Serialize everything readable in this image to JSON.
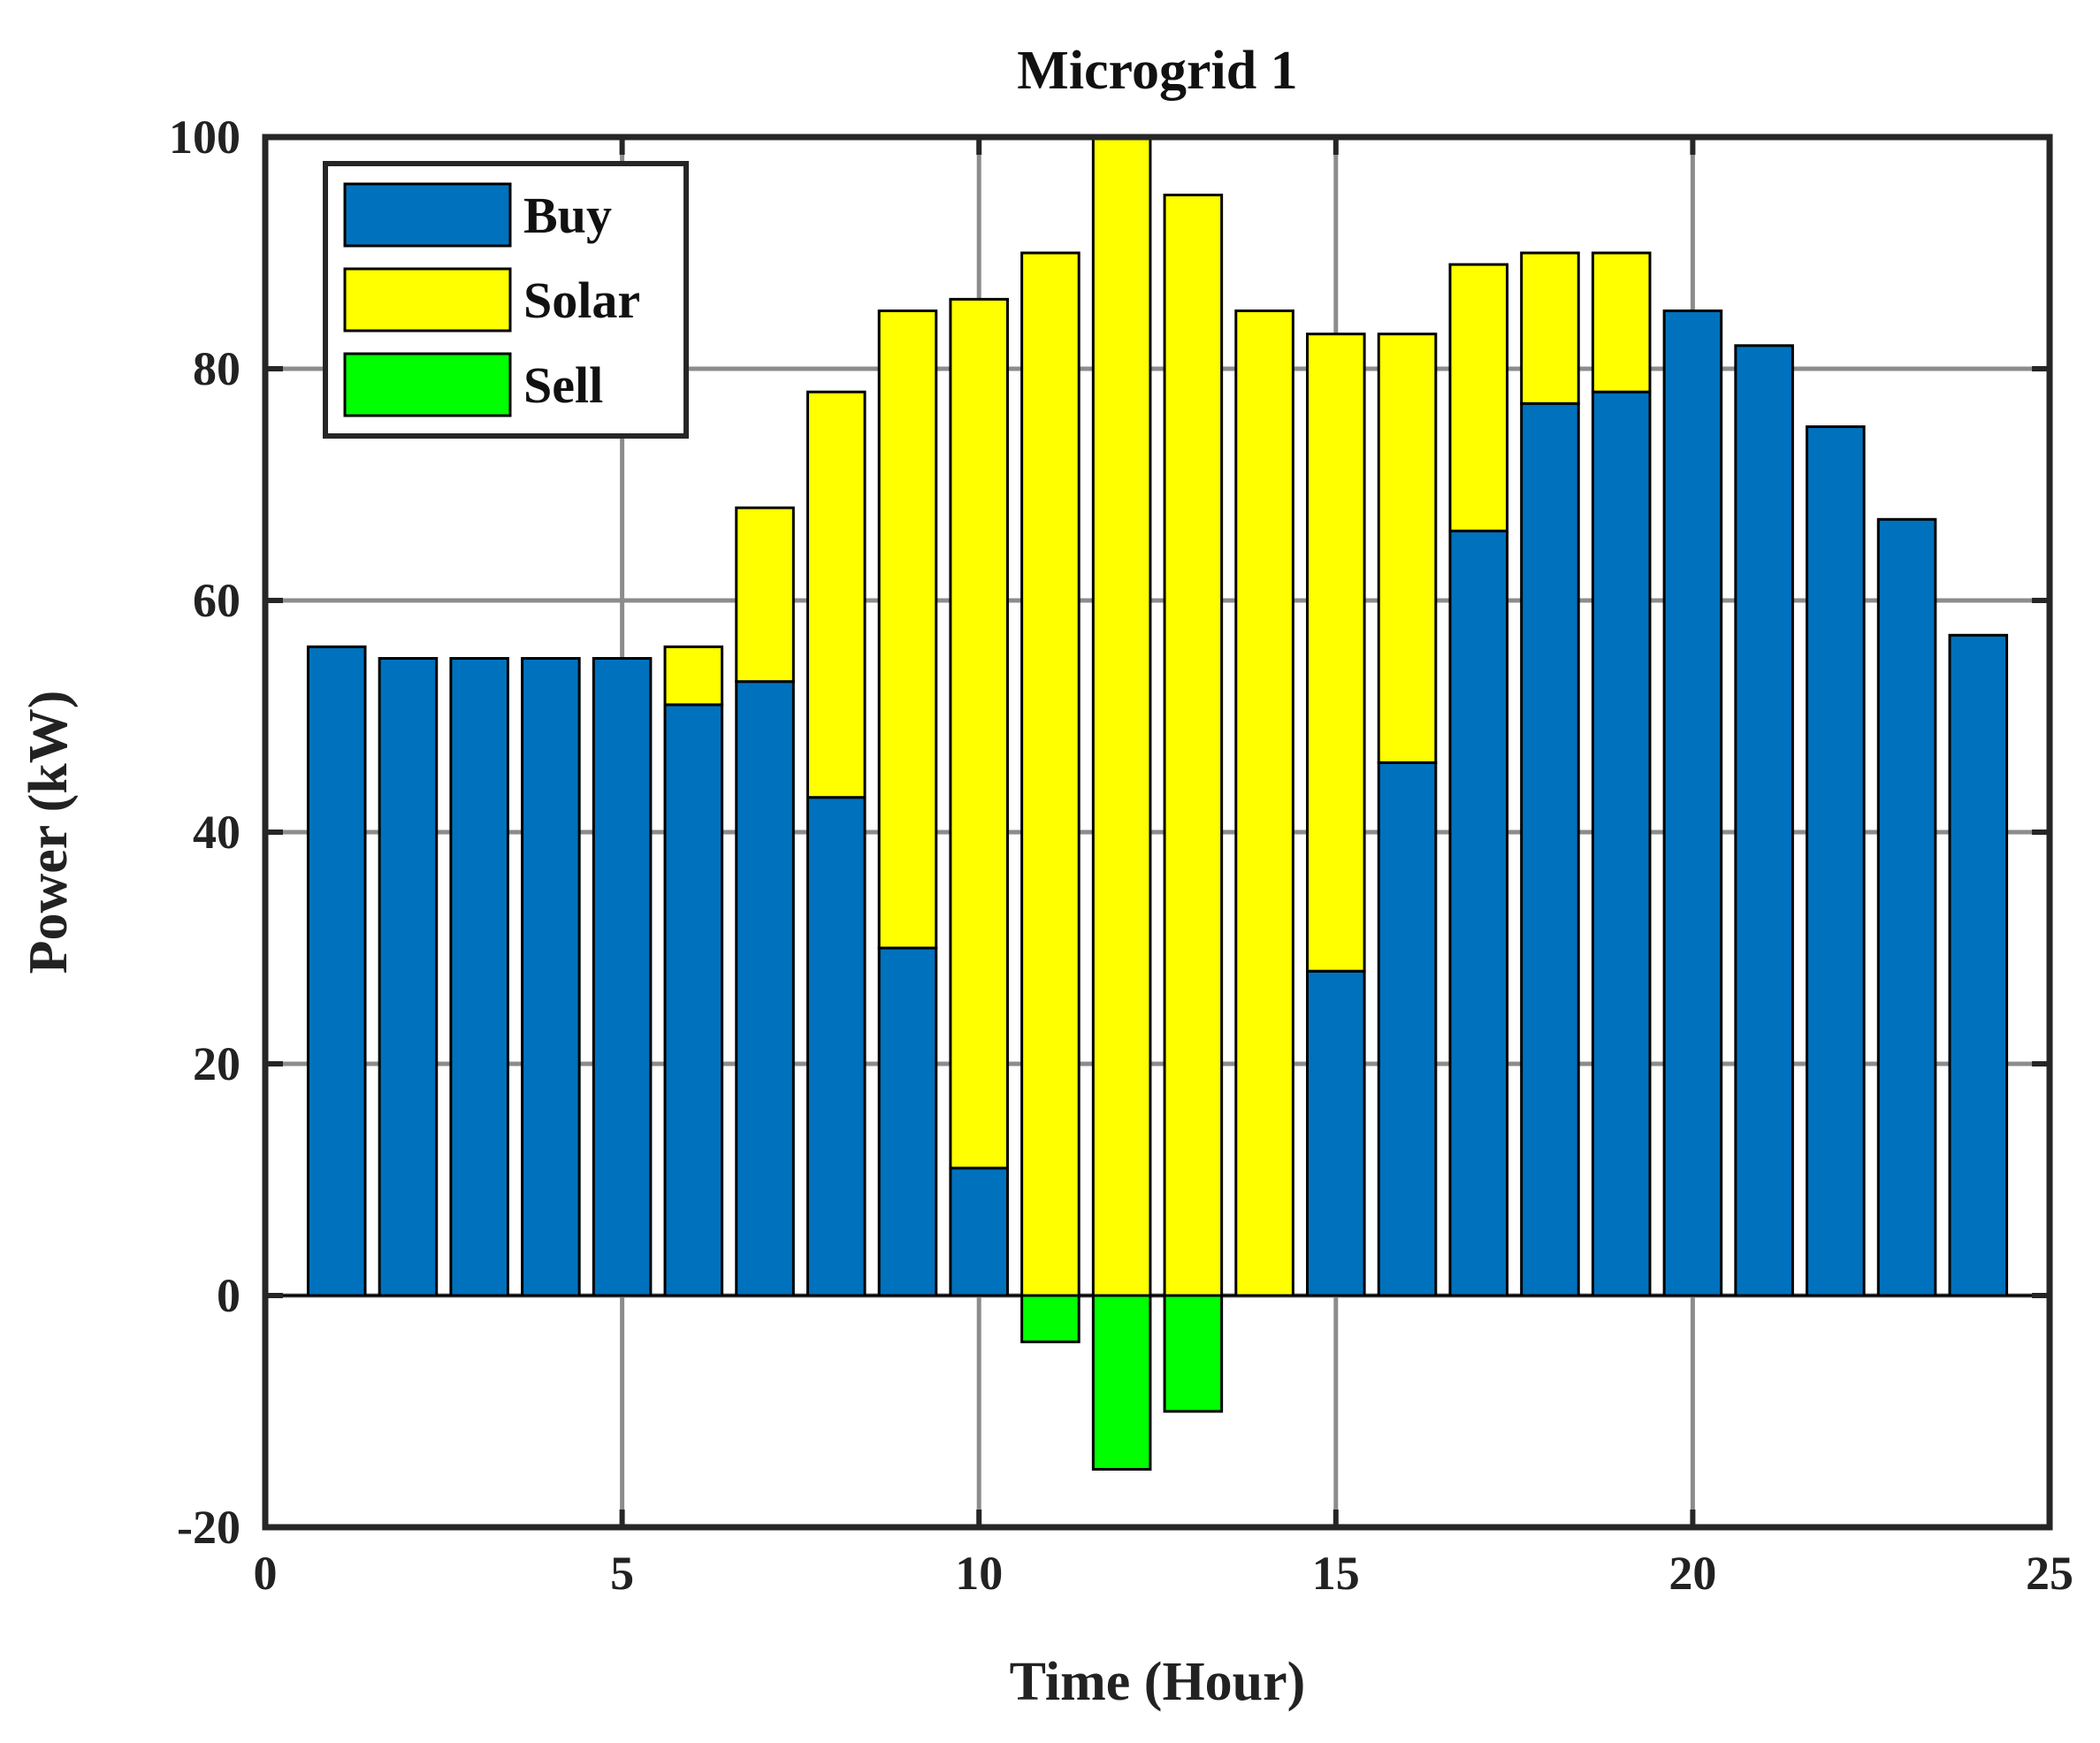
{
  "chart_data": {
    "type": "bar",
    "stacked": true,
    "title": "Microgrid 1",
    "xlabel": "Time (Hour)",
    "ylabel": "Power (kW)",
    "xlim": [
      0,
      25
    ],
    "ylim": [
      -20,
      100
    ],
    "xticks": [
      0,
      5,
      10,
      15,
      20,
      25
    ],
    "yticks": [
      -20,
      0,
      20,
      40,
      60,
      80,
      100
    ],
    "grid": true,
    "legend_position": "top-left",
    "x": [
      1,
      2,
      3,
      4,
      5,
      6,
      7,
      8,
      9,
      10,
      11,
      12,
      13,
      14,
      15,
      16,
      17,
      18,
      19,
      20,
      21,
      22,
      23,
      24
    ],
    "series": [
      {
        "name": "Buy",
        "color": "#0072BD",
        "values": [
          56,
          55,
          55,
          55,
          55,
          51,
          53,
          43,
          30,
          11,
          0,
          0,
          0,
          0,
          28,
          46,
          66,
          77,
          78,
          85,
          82,
          75,
          67,
          57
        ]
      },
      {
        "name": "Solar",
        "color": "#FFFF00",
        "values": [
          0,
          0,
          0,
          0,
          0,
          5,
          15,
          35,
          55,
          75,
          90,
          100,
          95,
          85,
          55,
          37,
          23,
          13,
          12,
          0,
          0,
          0,
          0,
          0
        ]
      },
      {
        "name": "Sell",
        "color": "#00FF00",
        "values": [
          0,
          0,
          0,
          0,
          0,
          0,
          0,
          0,
          0,
          0,
          -4,
          -15,
          -10,
          0,
          0,
          0,
          0,
          0,
          0,
          0,
          0,
          0,
          0,
          0
        ]
      }
    ]
  }
}
